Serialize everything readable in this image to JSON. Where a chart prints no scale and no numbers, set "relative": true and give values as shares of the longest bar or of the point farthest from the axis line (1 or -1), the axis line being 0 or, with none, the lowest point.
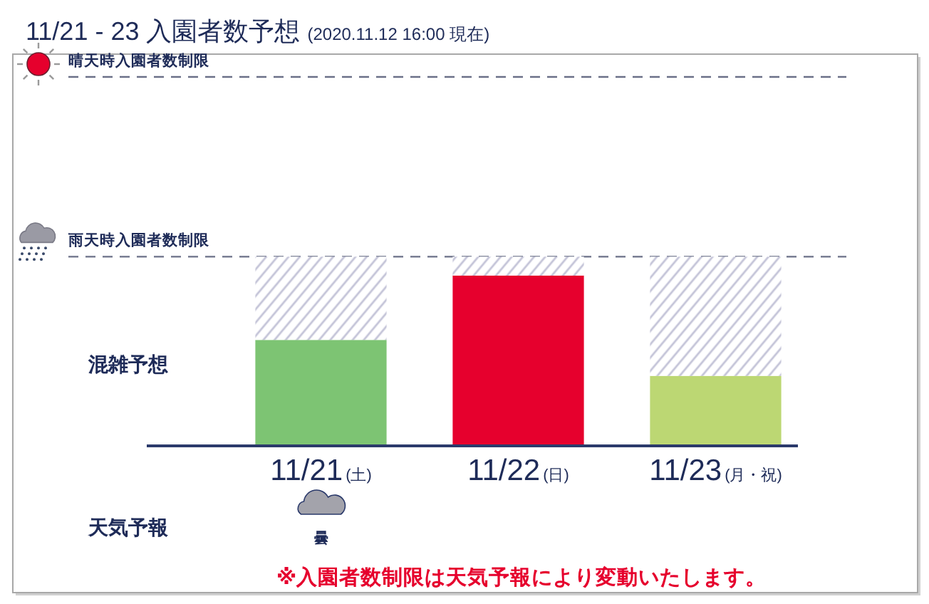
{
  "chart_data": {
    "type": "bar",
    "title": "11/21 - 23 入園者数予想",
    "subtitle": "(2020.11.12 16:00 現在)",
    "ylabel": "混雑予想",
    "categories": [
      "11/21(土)",
      "11/22(日)",
      "11/23(月・祝)"
    ],
    "stacked": true,
    "relative": true,
    "series": [
      {
        "colors": [
          "#7dc473",
          "#e6002d",
          "#bcd773"
        ],
        "values": [
          0.56,
          0.9,
          0.37
        ]
      },
      {
        "color": "#c4c4d8",
        "values": [
          0.44,
          0.1,
          0.63
        ]
      }
    ],
    "ref_lines": [
      {
        "axis": "y",
        "value": 1.95,
        "label": "晴天時入園者数制限",
        "color": "#6b7088",
        "line_style": "dashed"
      },
      {
        "axis": "y",
        "value": 1,
        "label": "雨天時入園者数制限",
        "color": "#6b7088",
        "line_style": "dashed"
      }
    ],
    "annotations": [
      "天気予報",
      "曇",
      "※入園者数制限は天気予報により変動いたします。"
    ]
  }
}
